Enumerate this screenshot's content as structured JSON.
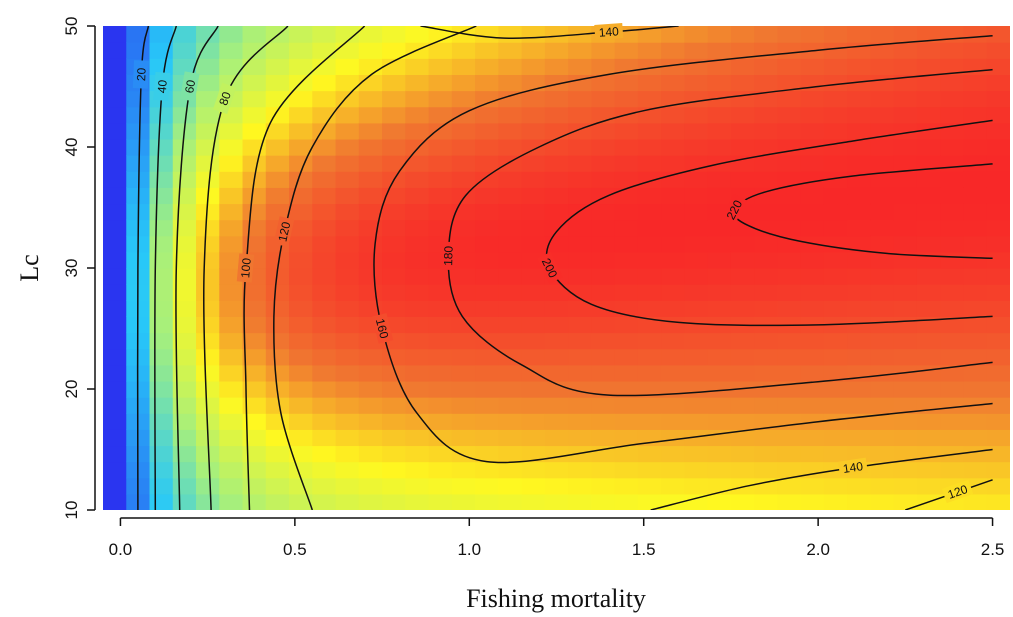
{
  "chart_data": {
    "type": "heatmap",
    "title": "",
    "xlabel": "Fishing mortality",
    "ylabel": "Lc",
    "xlim": [
      -0.05,
      2.55
    ],
    "ylim": [
      10,
      50
    ],
    "x_ticks": [
      0.0,
      0.5,
      1.0,
      1.5,
      2.0,
      2.5
    ],
    "x_tick_labels": [
      "0.0",
      "0.5",
      "1.0",
      "1.5",
      "2.0",
      "2.5"
    ],
    "y_ticks": [
      10,
      20,
      30,
      40,
      50
    ],
    "y_tick_labels": [
      "10",
      "20",
      "30",
      "40",
      "50"
    ],
    "colorscale": [
      "#2a35f0",
      "#28c8f8",
      "#a8f07a",
      "#fff820",
      "#f07830",
      "#f82828"
    ],
    "contours": [
      {
        "level": 20,
        "label": "20",
        "points": [
          [
            0.05,
            10
          ],
          [
            0.05,
            30
          ],
          [
            0.06,
            46
          ],
          [
            0.08,
            50
          ]
        ]
      },
      {
        "level": 40,
        "label": "40",
        "points": [
          [
            0.1,
            10
          ],
          [
            0.1,
            30
          ],
          [
            0.12,
            45
          ],
          [
            0.16,
            50
          ]
        ]
      },
      {
        "level": 60,
        "label": "60",
        "points": [
          [
            0.17,
            10
          ],
          [
            0.16,
            30
          ],
          [
            0.2,
            45
          ],
          [
            0.28,
            50
          ]
        ]
      },
      {
        "level": 80,
        "label": "80",
        "points": [
          [
            0.26,
            10
          ],
          [
            0.24,
            30
          ],
          [
            0.3,
            44
          ],
          [
            0.48,
            50
          ]
        ]
      },
      {
        "level": 100,
        "label": "100",
        "points": [
          [
            0.37,
            10
          ],
          [
            0.36,
            20
          ],
          [
            0.36,
            30
          ],
          [
            0.43,
            42
          ],
          [
            0.7,
            50
          ]
        ]
      },
      {
        "level": 120,
        "label": "120",
        "points": [
          [
            0.55,
            10
          ],
          [
            0.46,
            18
          ],
          [
            0.44,
            26
          ],
          [
            0.47,
            33
          ],
          [
            0.55,
            40
          ],
          [
            0.72,
            46
          ],
          [
            1.02,
            50
          ]
        ]
      },
      {
        "level": 120,
        "label": "120",
        "points": [
          [
            2.25,
            10
          ],
          [
            2.4,
            11.5
          ],
          [
            2.5,
            12.5
          ]
        ]
      },
      {
        "level": 140,
        "label": "140",
        "points": [
          [
            0.86,
            50
          ],
          [
            1.1,
            49
          ],
          [
            1.4,
            49.5
          ],
          [
            1.6,
            50
          ]
        ]
      },
      {
        "level": 140,
        "label": "140",
        "points": [
          [
            1.52,
            10
          ],
          [
            1.8,
            12
          ],
          [
            2.1,
            13.5
          ],
          [
            2.5,
            15
          ]
        ]
      },
      {
        "level": 160,
        "label": "160",
        "points": [
          [
            2.5,
            49.2
          ],
          [
            2.0,
            48
          ],
          [
            1.4,
            46
          ],
          [
            1.0,
            43
          ],
          [
            0.8,
            38
          ],
          [
            0.73,
            32
          ],
          [
            0.75,
            25
          ],
          [
            0.85,
            18
          ],
          [
            1.05,
            14
          ],
          [
            1.5,
            15.5
          ],
          [
            2.0,
            17.3
          ],
          [
            2.5,
            18.8
          ]
        ]
      },
      {
        "level": 180,
        "label": "180",
        "points": [
          [
            2.5,
            46.4
          ],
          [
            2.0,
            45
          ],
          [
            1.5,
            43
          ],
          [
            1.2,
            40
          ],
          [
            0.99,
            36
          ],
          [
            0.94,
            31
          ],
          [
            0.98,
            26
          ],
          [
            1.15,
            22
          ],
          [
            1.4,
            19.5
          ],
          [
            2.0,
            20.6
          ],
          [
            2.5,
            22.2
          ]
        ]
      },
      {
        "level": 200,
        "label": "200",
        "points": [
          [
            2.5,
            42.2
          ],
          [
            2.1,
            40.5
          ],
          [
            1.7,
            38.5
          ],
          [
            1.4,
            36
          ],
          [
            1.25,
            33
          ],
          [
            1.23,
            30
          ],
          [
            1.35,
            27
          ],
          [
            1.6,
            25.5
          ],
          [
            2.0,
            25.3
          ],
          [
            2.5,
            26
          ]
        ]
      },
      {
        "level": 220,
        "label": "220",
        "points": [
          [
            2.5,
            30.8
          ],
          [
            2.2,
            31.2
          ],
          [
            1.95,
            32.2
          ],
          [
            1.8,
            33.5
          ],
          [
            1.76,
            34.8
          ],
          [
            1.85,
            36.3
          ],
          [
            2.1,
            37.6
          ],
          [
            2.5,
            38.6
          ]
        ]
      }
    ]
  }
}
